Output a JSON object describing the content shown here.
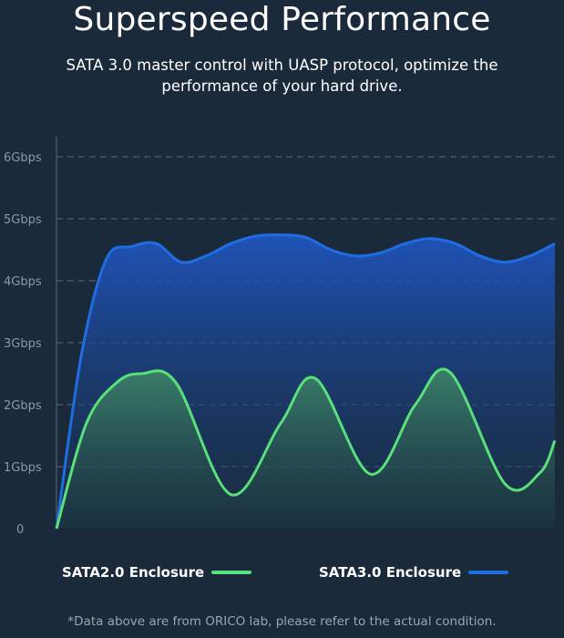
{
  "header": {
    "title": "Superspeed Performance",
    "subtitle": "SATA 3.0 master control with UASP protocol, optimize the performance of your hard drive."
  },
  "footnote": "*Data above are from ORICO lab, please refer to the actual condition.",
  "colors": {
    "background": "#1b2a3a",
    "sata2": "#59e07a",
    "sata3": "#1f6de3",
    "grid": "#5a6b7c",
    "tick": "#8a98a6"
  },
  "chart_data": {
    "type": "area",
    "title": "",
    "xlabel": "",
    "ylabel": "",
    "ylim": [
      0,
      6
    ],
    "ytick_values": [
      0,
      1,
      2,
      3,
      4,
      5,
      6
    ],
    "yticks": [
      "0",
      "1Gbps",
      "2Gbps",
      "3Gbps",
      "4Gbps",
      "5Gbps",
      "6Gbps"
    ],
    "grid": true,
    "legend": "bottom",
    "series": [
      {
        "name": "SATA3.0 Enclosure",
        "color": "#1f6de3",
        "x": [
          0,
          0.05,
          0.1,
          0.15,
          0.2,
          0.25,
          0.3,
          0.35,
          0.4,
          0.45,
          0.5,
          0.55,
          0.6,
          0.65,
          0.7,
          0.75,
          0.8,
          0.85,
          0.9,
          0.95,
          1
        ],
        "y": [
          0,
          2.8,
          4.35,
          4.55,
          4.6,
          4.3,
          4.4,
          4.6,
          4.72,
          4.74,
          4.7,
          4.5,
          4.4,
          4.45,
          4.6,
          4.68,
          4.6,
          4.4,
          4.3,
          4.4,
          4.6
        ]
      },
      {
        "name": "SATA2.0 Enclosure",
        "color": "#59e07a",
        "x": [
          0,
          0.06,
          0.12,
          0.17,
          0.24,
          0.35,
          0.45,
          0.52,
          0.63,
          0.72,
          0.79,
          0.9,
          0.97,
          1
        ],
        "y": [
          0,
          1.7,
          2.35,
          2.5,
          2.35,
          0.55,
          1.7,
          2.42,
          0.88,
          2.0,
          2.52,
          0.72,
          0.9,
          1.42
        ]
      }
    ]
  }
}
